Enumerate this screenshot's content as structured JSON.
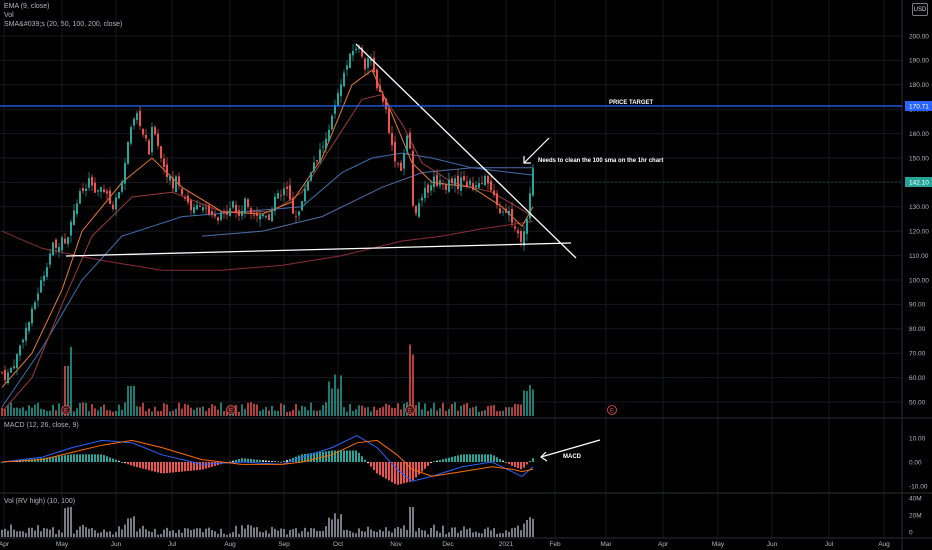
{
  "legend": {
    "ema": "EMA (9, close)",
    "vol": "Vol",
    "sma": "SMA&#039;s (20, 50, 100, 200, close)",
    "macd": "MACD (12, 26, close, 9)",
    "rv": "Vol (RV high) (10, 100)"
  },
  "currency": "USD",
  "colors": {
    "up": "#26a69a",
    "down": "#ef5350",
    "ema": "#e87a2d",
    "sma20": "#9a3b3b",
    "sma50": "#3d6fb0",
    "sma100": "#4b6fa5",
    "sma200": "#8a2d3a",
    "target": "#2962ff",
    "macd": "#2962ff",
    "signal": "#ff6d00",
    "rvbar": "#787b86"
  },
  "icons": {
    "earnings": "earnings-e-icon",
    "arrow": "arrow-icon"
  },
  "chart_data": {
    "type": "candlestick",
    "price_axis": {
      "ticks": [
        50,
        60,
        70,
        80,
        90,
        100,
        110,
        120,
        130,
        140,
        150,
        160,
        170,
        180,
        190,
        200
      ],
      "range": [
        45,
        205
      ]
    },
    "time_axis": {
      "labels": [
        "Apr",
        "May",
        "Jun",
        "Jul",
        "Aug",
        "Sep",
        "Oct",
        "Nov",
        "Dec",
        "2021",
        "Feb",
        "Mar",
        "Apr",
        "May",
        "Jun",
        "Jul",
        "Aug"
      ]
    },
    "last_price": "142.10",
    "price_target": {
      "value": "170.71",
      "label": "PRICE TARGET"
    },
    "annotations": {
      "sma_note": "Needs to clean the 100 sma on the 1hr chart",
      "macd_note": "MACD"
    },
    "price_path": [
      [
        0,
        62
      ],
      [
        4,
        60
      ],
      [
        8,
        63
      ],
      [
        12,
        66
      ],
      [
        16,
        70
      ],
      [
        20,
        76
      ],
      [
        24,
        80
      ],
      [
        28,
        84
      ],
      [
        31,
        88
      ],
      [
        35,
        94
      ],
      [
        39,
        99
      ],
      [
        43,
        104
      ],
      [
        47,
        110
      ],
      [
        51,
        114
      ],
      [
        55,
        112
      ],
      [
        59,
        118
      ],
      [
        63,
        116
      ],
      [
        67,
        120
      ],
      [
        71,
        128
      ],
      [
        75,
        132
      ],
      [
        79,
        136
      ],
      [
        83,
        137
      ],
      [
        87,
        140
      ],
      [
        91,
        138
      ],
      [
        95,
        134
      ],
      [
        99,
        138
      ],
      [
        103,
        136
      ],
      [
        107,
        132
      ],
      [
        111,
        130
      ],
      [
        115,
        134
      ],
      [
        119,
        140
      ],
      [
        123,
        148
      ],
      [
        127,
        158
      ],
      [
        131,
        164
      ],
      [
        135,
        168
      ],
      [
        139,
        162
      ],
      [
        143,
        158
      ],
      [
        147,
        152
      ],
      [
        151,
        164
      ],
      [
        155,
        158
      ],
      [
        159,
        150
      ],
      [
        163,
        146
      ],
      [
        167,
        142
      ],
      [
        171,
        138
      ],
      [
        175,
        143
      ],
      [
        179,
        136
      ],
      [
        183,
        134
      ],
      [
        187,
        131
      ],
      [
        191,
        128
      ],
      [
        195,
        130
      ],
      [
        199,
        132
      ],
      [
        203,
        129
      ],
      [
        207,
        126
      ],
      [
        211,
        126
      ],
      [
        215,
        124
      ],
      [
        219,
        126
      ],
      [
        223,
        127
      ],
      [
        227,
        130
      ],
      [
        231,
        132
      ],
      [
        235,
        126
      ],
      [
        239,
        128
      ],
      [
        243,
        132
      ],
      [
        247,
        130
      ],
      [
        251,
        128
      ],
      [
        255,
        127
      ],
      [
        259,
        126
      ],
      [
        263,
        128
      ],
      [
        267,
        126
      ],
      [
        271,
        129
      ],
      [
        275,
        136
      ],
      [
        279,
        134
      ],
      [
        283,
        138
      ],
      [
        287,
        134
      ],
      [
        291,
        128
      ],
      [
        295,
        127
      ],
      [
        299,
        129
      ],
      [
        303,
        138
      ],
      [
        307,
        142
      ],
      [
        311,
        148
      ],
      [
        315,
        150
      ],
      [
        319,
        154
      ],
      [
        323,
        156
      ],
      [
        327,
        160
      ],
      [
        331,
        168
      ],
      [
        335,
        174
      ],
      [
        339,
        180
      ],
      [
        343,
        186
      ],
      [
        347,
        190
      ],
      [
        351,
        194
      ],
      [
        355,
        196
      ],
      [
        359,
        194
      ],
      [
        363,
        188
      ],
      [
        367,
        192
      ],
      [
        371,
        186
      ],
      [
        375,
        180
      ],
      [
        379,
        176
      ],
      [
        383,
        172
      ],
      [
        387,
        162
      ],
      [
        391,
        152
      ],
      [
        395,
        148
      ],
      [
        399,
        146
      ],
      [
        403,
        154
      ],
      [
        407,
        162
      ],
      [
        411,
        130
      ],
      [
        415,
        128
      ],
      [
        419,
        132
      ],
      [
        423,
        136
      ],
      [
        427,
        138
      ],
      [
        431,
        142
      ],
      [
        435,
        140
      ],
      [
        439,
        141
      ],
      [
        443,
        138
      ],
      [
        447,
        140
      ],
      [
        451,
        142
      ],
      [
        455,
        138
      ],
      [
        459,
        142
      ],
      [
        463,
        139
      ],
      [
        467,
        140
      ],
      [
        471,
        137
      ],
      [
        475,
        141
      ],
      [
        479,
        140
      ],
      [
        483,
        144
      ],
      [
        487,
        138
      ],
      [
        491,
        134
      ],
      [
        495,
        130
      ],
      [
        499,
        128
      ],
      [
        503,
        126
      ],
      [
        507,
        128
      ],
      [
        511,
        122
      ],
      [
        515,
        118
      ],
      [
        519,
        117
      ],
      [
        523,
        120
      ],
      [
        527,
        132
      ],
      [
        531,
        144
      ]
    ],
    "ema": [
      [
        0,
        56
      ],
      [
        30,
        70
      ],
      [
        60,
        96
      ],
      [
        80,
        120
      ],
      [
        120,
        140
      ],
      [
        150,
        150
      ],
      [
        180,
        138
      ],
      [
        220,
        128
      ],
      [
        260,
        127
      ],
      [
        290,
        132
      ],
      [
        320,
        150
      ],
      [
        350,
        180
      ],
      [
        370,
        186
      ],
      [
        390,
        168
      ],
      [
        410,
        148
      ],
      [
        430,
        140
      ],
      [
        470,
        138
      ],
      [
        500,
        130
      ],
      [
        520,
        122
      ],
      [
        531,
        130
      ]
    ],
    "sma20": [
      [
        0,
        46
      ],
      [
        30,
        60
      ],
      [
        60,
        90
      ],
      [
        90,
        118
      ],
      [
        130,
        134
      ],
      [
        170,
        136
      ],
      [
        220,
        128
      ],
      [
        270,
        128
      ],
      [
        300,
        136
      ],
      [
        330,
        155
      ],
      [
        360,
        174
      ],
      [
        380,
        176
      ],
      [
        400,
        164
      ],
      [
        420,
        148
      ],
      [
        450,
        140
      ],
      [
        490,
        136
      ],
      [
        515,
        130
      ],
      [
        531,
        126
      ]
    ],
    "sma50": [
      [
        0,
        48
      ],
      [
        40,
        72
      ],
      [
        80,
        100
      ],
      [
        120,
        118
      ],
      [
        180,
        126
      ],
      [
        240,
        128
      ],
      [
        300,
        130
      ],
      [
        340,
        144
      ],
      [
        370,
        150
      ],
      [
        400,
        152
      ],
      [
        430,
        150
      ],
      [
        470,
        146
      ],
      [
        510,
        144
      ],
      [
        531,
        143
      ]
    ],
    "sma100": [
      [
        200,
        118
      ],
      [
        260,
        120
      ],
      [
        320,
        126
      ],
      [
        380,
        138
      ],
      [
        420,
        144
      ],
      [
        470,
        146
      ],
      [
        531,
        146
      ]
    ],
    "sma200": [
      [
        0,
        120
      ],
      [
        40,
        113
      ],
      [
        100,
        108
      ],
      [
        160,
        104
      ],
      [
        220,
        104
      ],
      [
        280,
        106
      ],
      [
        340,
        110
      ],
      [
        400,
        116
      ],
      [
        440,
        118
      ],
      [
        480,
        121
      ],
      [
        531,
        124
      ]
    ],
    "trendlines": {
      "support": {
        "from": [
          "May",
          110
        ],
        "to": [
          "Jan",
          114
        ]
      },
      "resistance": {
        "from": [
          "Oct",
          198
        ],
        "to": [
          "Jan",
          110
        ]
      }
    },
    "macd": {
      "axis": {
        "ticks": [
          "10.00",
          "0.00",
          "-10.00"
        ]
      },
      "line": [
        [
          0,
          0
        ],
        [
          40,
          2
        ],
        [
          70,
          6
        ],
        [
          100,
          9
        ],
        [
          130,
          8
        ],
        [
          160,
          3
        ],
        [
          200,
          -1
        ],
        [
          240,
          0
        ],
        [
          280,
          -1
        ],
        [
          300,
          2
        ],
        [
          330,
          6
        ],
        [
          355,
          11
        ],
        [
          375,
          6
        ],
        [
          395,
          -3
        ],
        [
          410,
          -8
        ],
        [
          430,
          -6
        ],
        [
          460,
          -2
        ],
        [
          490,
          0
        ],
        [
          510,
          -4
        ],
        [
          520,
          -6
        ],
        [
          531,
          -2
        ]
      ],
      "signal": [
        [
          0,
          0
        ],
        [
          40,
          1
        ],
        [
          70,
          4
        ],
        [
          100,
          7
        ],
        [
          130,
          9
        ],
        [
          160,
          6
        ],
        [
          200,
          1
        ],
        [
          240,
          -1
        ],
        [
          280,
          -1
        ],
        [
          300,
          0
        ],
        [
          330,
          3
        ],
        [
          355,
          8
        ],
        [
          375,
          9
        ],
        [
          395,
          3
        ],
        [
          410,
          -3
        ],
        [
          430,
          -6
        ],
        [
          460,
          -4
        ],
        [
          490,
          -2
        ],
        [
          510,
          -3
        ],
        [
          520,
          -4
        ],
        [
          531,
          -3
        ]
      ]
    },
    "rv_axis": {
      "ticks": [
        "40M",
        "20M",
        "0"
      ]
    }
  }
}
